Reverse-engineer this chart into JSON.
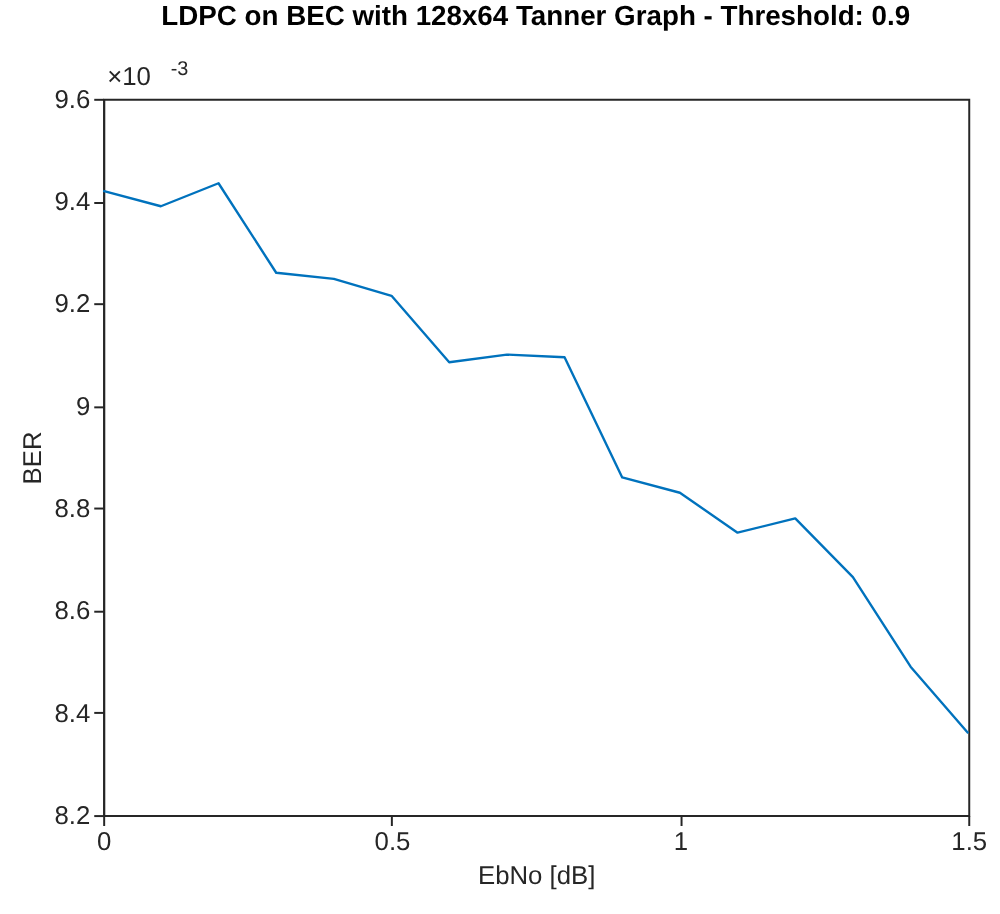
{
  "chart_data": {
    "type": "line",
    "title": "LDPC on BEC with 128x64 Tanner Graph - Threshold: 0.9",
    "xlabel": "EbNo [dB]",
    "ylabel": "BER",
    "x": [
      0,
      0.1,
      0.2,
      0.3,
      0.4,
      0.5,
      0.6,
      0.7,
      0.8,
      0.9,
      1.0,
      1.1,
      1.2,
      1.3,
      1.4,
      1.5
    ],
    "series": [
      {
        "color": "#0072bd",
        "values": [
          9.42,
          9.39,
          9.435,
          9.26,
          9.248,
          9.215,
          9.085,
          9.1,
          9.095,
          8.86,
          8.83,
          8.752,
          8.78,
          8.665,
          8.49,
          8.36
        ]
      }
    ],
    "xlim": [
      0,
      1.5
    ],
    "xticks": [
      0,
      0.5,
      1,
      1.5
    ],
    "ylim": [
      8.2,
      9.6
    ],
    "yticks": [
      8.2,
      8.4,
      8.6,
      8.8,
      9,
      9.2,
      9.4,
      9.6
    ],
    "annotations": [
      "×10$^{-3}$"
    ],
    "grid": false,
    "legend": false,
    "marker": "none",
    "line_style": "solid"
  }
}
